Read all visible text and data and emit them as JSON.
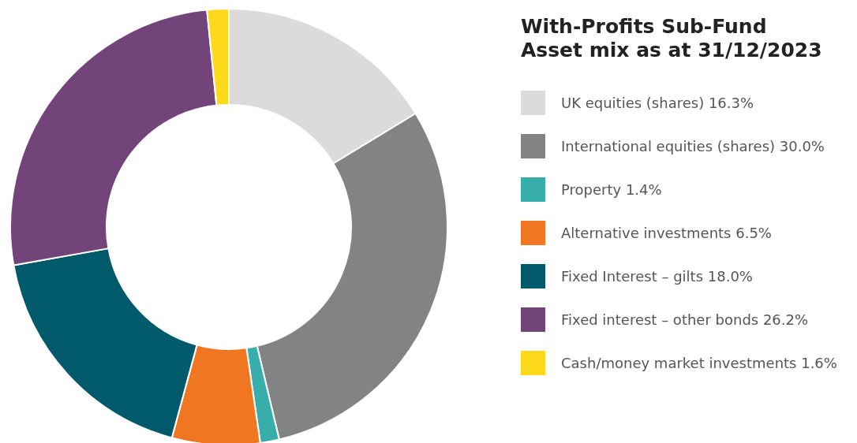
{
  "chart_data": {
    "type": "donut",
    "title": "With-Profits Sub-Fund",
    "subtitle": "Asset mix as at 31/12/2023",
    "categories": [
      "UK equities (shares)",
      "International equities (shares)",
      "Property",
      "Alternative investments",
      "Fixed Interest – gilts",
      "Fixed interest – other bonds",
      "Cash/money market investments"
    ],
    "values": [
      16.3,
      30.0,
      1.4,
      6.5,
      18.0,
      26.2,
      1.6
    ],
    "value_labels": [
      "16.3%",
      "30.0%",
      "1.4%",
      "6.5%",
      "18.0%",
      "26.2%",
      "1.6%"
    ],
    "colors": [
      "#dcdbd9",
      "#818483",
      "#38aeab",
      "#f07622",
      "#005a6b",
      "#724479",
      "#fdd91c"
    ],
    "legend": "right"
  }
}
